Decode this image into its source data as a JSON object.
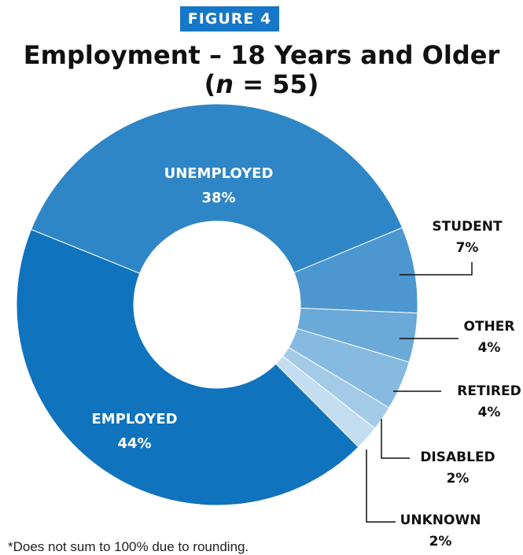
{
  "figure_label": "FIGURE 4",
  "title": "Employment – 18 Years and Older",
  "subtitle_prefix": "(",
  "subtitle_n": "n",
  "subtitle_rest": " = 55)",
  "footnote": "*Does not sum to 100% due to rounding.",
  "colors": {
    "badge": "#1677c8",
    "employed": "#0f73bd",
    "unemployed": "#2f86c6",
    "student": "#4c97cf",
    "other": "#6aa9d8",
    "retired": "#86bae0",
    "disabled": "#a3cbe8",
    "unknown": "#c3ddf1"
  },
  "chart_data": {
    "type": "pie",
    "donut": true,
    "categories": [
      "UNEMPLOYED",
      "STUDENT",
      "OTHER",
      "RETIRED",
      "DISABLED",
      "UNKNOWN",
      "EMPLOYED"
    ],
    "values": [
      38,
      7,
      4,
      4,
      2,
      2,
      44
    ],
    "labels": [
      "38%",
      "7%",
      "4%",
      "4%",
      "2%",
      "2%",
      "44%"
    ],
    "title": "Employment – 18 Years and Older",
    "subtitle": "(n = 55)"
  }
}
